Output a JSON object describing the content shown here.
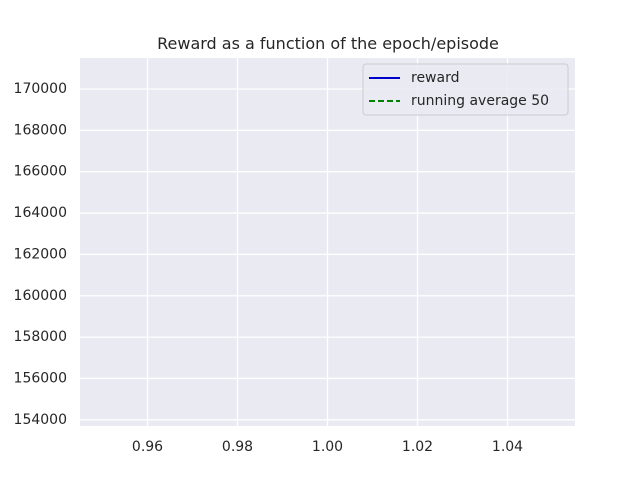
{
  "chart_data": {
    "type": "line",
    "title": "Reward as a function of the epoch/episode",
    "xlabel": "",
    "ylabel": "",
    "xlim": [
      0.945,
      1.055
    ],
    "ylim": [
      153700,
      171500
    ],
    "x_ticks": [
      0.96,
      0.98,
      1.0,
      1.02,
      1.04
    ],
    "x_tick_labels": [
      "0.96",
      "0.98",
      "1.00",
      "1.02",
      "1.04"
    ],
    "y_ticks": [
      154000,
      156000,
      158000,
      160000,
      162000,
      164000,
      166000,
      168000,
      170000
    ],
    "y_tick_labels": [
      "154000",
      "156000",
      "158000",
      "160000",
      "162000",
      "164000",
      "166000",
      "168000",
      "170000"
    ],
    "grid": true,
    "legend_position": "upper-right",
    "series": [
      {
        "name": "reward",
        "color": "#0000cc",
        "line_style": "solid",
        "x": [],
        "y": []
      },
      {
        "name": "running average 50",
        "color": "#008000",
        "line_style": "dashed",
        "x": [],
        "y": []
      }
    ],
    "colors": {
      "plot_background": "#eaeaf2",
      "grid": "#ffffff",
      "text": "#262626"
    }
  }
}
